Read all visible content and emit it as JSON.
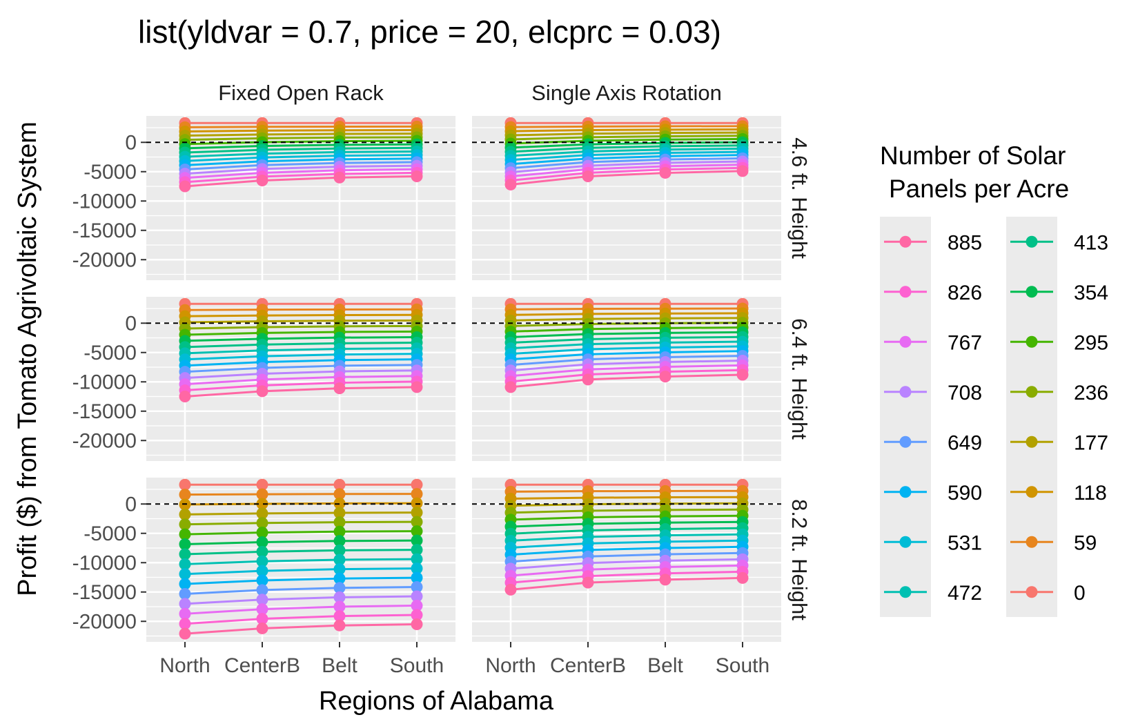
{
  "chart_data": {
    "type": "line",
    "title": "list(yldvar = 0.7, price = 20, elcprc = 0.03)",
    "xlabel": "Regions of Alabama",
    "ylabel": "Profit ($) from Tomato Agrivoltaic System",
    "categories": [
      "North",
      "CenterB",
      "Belt",
      "South"
    ],
    "ylim": [
      -23500,
      4500
    ],
    "yticks": [
      0,
      -5000,
      -10000,
      -15000,
      -20000
    ],
    "yticks_labels": [
      "0",
      "-5000",
      "-10000",
      "-15000",
      "-20000"
    ],
    "reference_line": {
      "y": 0,
      "style": "dashed"
    },
    "columns": [
      "Fixed Open Rack",
      "Single Axis Rotation"
    ],
    "rows": [
      "4.6 ft. Height",
      "6.4 ft. Height",
      "8.2 ft. Height"
    ],
    "grid": true,
    "legend": {
      "title_lines": [
        "Number of Solar",
        "Panels per Acre"
      ],
      "placement": "right",
      "columns": [
        [
          "885",
          "826",
          "767",
          "708",
          "649",
          "590",
          "531",
          "472"
        ],
        [
          "413",
          "354",
          "295",
          "236",
          "177",
          "118",
          "59",
          "0"
        ]
      ]
    },
    "series_colors": {
      "0": "#F8766D",
      "59": "#E7851E",
      "118": "#D09400",
      "177": "#B2A100",
      "236": "#89AC00",
      "295": "#45B500",
      "354": "#00BC51",
      "413": "#00C087",
      "472": "#00C0B2",
      "531": "#00BCD6",
      "590": "#00B3F2",
      "649": "#619CFF",
      "708": "#B983FF",
      "767": "#E76BF3",
      "826": "#FD61D1",
      "885": "#FF67A4"
    },
    "panels": [
      {
        "column": "Fixed Open Rack",
        "row": "4.6 ft. Height",
        "zero": [
          3300,
          3300,
          3300,
          3300
        ],
        "max": [
          -7500,
          -6500,
          -6000,
          -5800
        ]
      },
      {
        "column": "Single Axis Rotation",
        "row": "4.6 ft. Height",
        "zero": [
          3300,
          3300,
          3300,
          3300
        ],
        "max": [
          -7200,
          -5800,
          -5200,
          -4900
        ]
      },
      {
        "column": "Fixed Open Rack",
        "row": "6.4 ft. Height",
        "zero": [
          3300,
          3300,
          3300,
          3300
        ],
        "max": [
          -12500,
          -11600,
          -11100,
          -10900
        ]
      },
      {
        "column": "Single Axis Rotation",
        "row": "6.4 ft. Height",
        "zero": [
          3300,
          3300,
          3300,
          3300
        ],
        "max": [
          -10900,
          -9600,
          -9100,
          -8800
        ]
      },
      {
        "column": "Fixed Open Rack",
        "row": "8.2 ft. Height",
        "zero": [
          3300,
          3300,
          3300,
          3300
        ],
        "max": [
          -22100,
          -21200,
          -20700,
          -20500
        ]
      },
      {
        "column": "Single Axis Rotation",
        "row": "8.2 ft. Height",
        "zero": [
          3300,
          3300,
          3300,
          3300
        ],
        "max": [
          -14600,
          -13400,
          -12900,
          -12600
        ]
      }
    ]
  }
}
